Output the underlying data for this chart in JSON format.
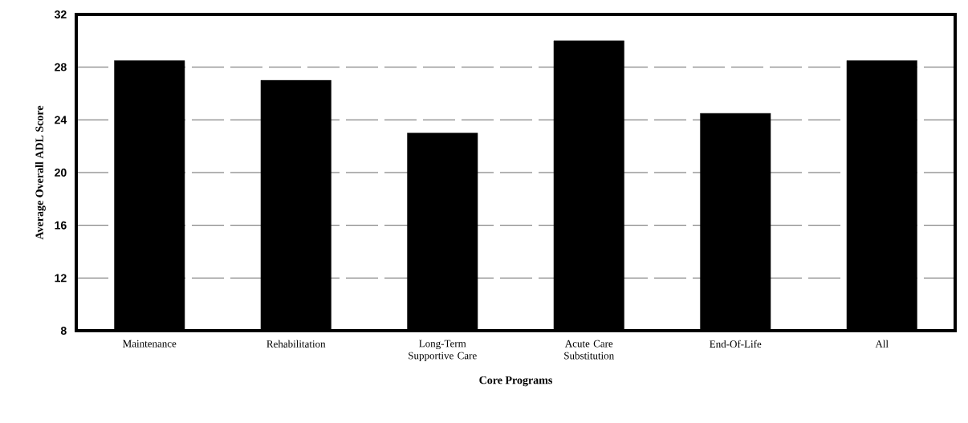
{
  "chart_data": {
    "type": "bar",
    "categories": [
      "Maintenance",
      "Rehabilitation",
      "Long-Term Supportive Care",
      "Acute Care Substitution",
      "End-Of-Life",
      "All"
    ],
    "values": [
      28.5,
      27,
      23,
      30,
      24.5,
      28.5
    ],
    "color": "#000000",
    "xlabel": "Core Programs",
    "ylabel": "Average Overall ADL Score",
    "ylim": [
      8,
      32
    ],
    "yticks": [
      8,
      12,
      16,
      20,
      24,
      28,
      32
    ],
    "grid": "y"
  }
}
